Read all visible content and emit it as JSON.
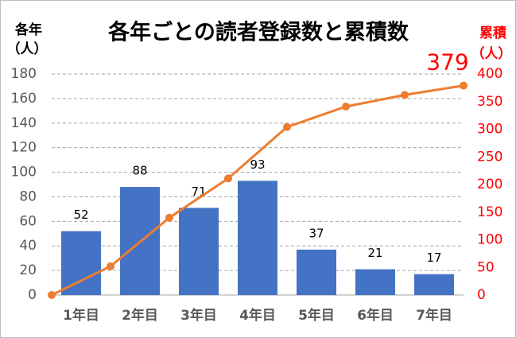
{
  "chart_data": {
    "type": "bar_line",
    "title": "各年ごとの読者登録数と累積数",
    "y_label": [
      "各年",
      "（人）"
    ],
    "y2_label": [
      "累積",
      "（人）"
    ],
    "categories": [
      "1年目",
      "2年目",
      "3年目",
      "4年目",
      "5年目",
      "6年目",
      "7年目"
    ],
    "series": [
      {
        "name": "各年",
        "type": "bar",
        "color": "#4472c4",
        "values": [
          52,
          88,
          71,
          93,
          37,
          21,
          17
        ]
      },
      {
        "name": "累積",
        "type": "line",
        "axis": "y2",
        "color": "#ed7d31",
        "x": [
          0,
          1,
          2,
          3,
          4,
          5,
          6,
          7
        ],
        "values": [
          0,
          52,
          140,
          211,
          304,
          341,
          362,
          379
        ]
      }
    ],
    "ylim": [
      0,
      180
    ],
    "yticks": [
      0,
      20,
      40,
      60,
      80,
      100,
      120,
      140,
      160,
      180
    ],
    "y2lim": [
      0,
      400
    ],
    "y2ticks": [
      0,
      50,
      100,
      150,
      200,
      250,
      300,
      350,
      400
    ],
    "y2_color": "#ff0000",
    "grid": true
  }
}
